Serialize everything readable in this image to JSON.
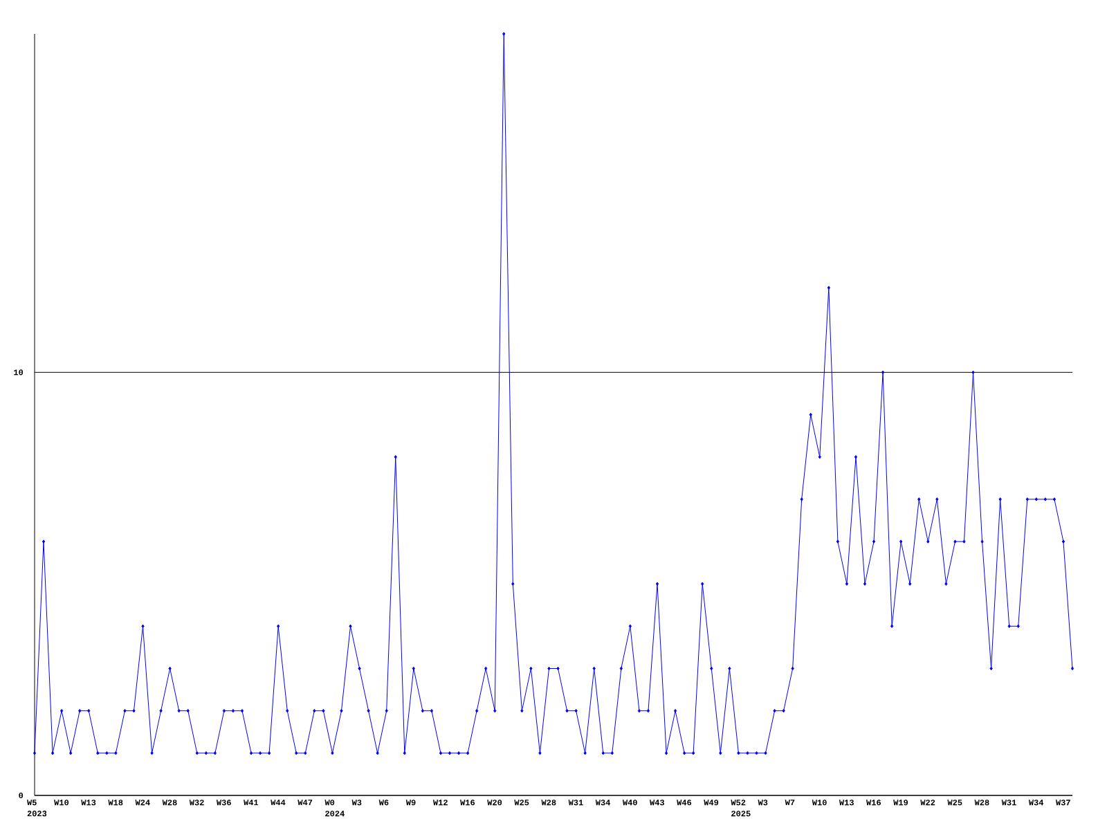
{
  "chart_data": {
    "type": "line",
    "categories": [
      "W5 2023",
      null,
      null,
      "W10",
      null,
      null,
      "W13",
      null,
      null,
      "W18",
      null,
      null,
      "W24",
      null,
      null,
      "W28",
      null,
      null,
      "W32",
      null,
      null,
      "W36",
      null,
      null,
      "W41",
      null,
      null,
      "W44",
      null,
      null,
      "W47",
      null,
      null,
      "W0 2024",
      null,
      null,
      "W3",
      null,
      null,
      "W6",
      null,
      null,
      "W9",
      null,
      null,
      "W12",
      null,
      null,
      "W16",
      null,
      null,
      "W20",
      null,
      null,
      "W25",
      null,
      null,
      "W28",
      null,
      null,
      "W31",
      null,
      null,
      "W34",
      null,
      null,
      "W40",
      null,
      null,
      "W43",
      null,
      null,
      "W46",
      null,
      null,
      "W49",
      null,
      null,
      "W52 2025",
      null,
      null,
      "W3",
      null,
      null,
      "W7",
      null,
      null,
      "W10",
      null,
      null,
      "W13",
      null,
      null,
      "W16",
      null,
      null,
      "W19",
      null,
      null,
      "W22",
      null,
      null,
      "W25",
      null,
      null,
      "W28",
      null,
      null,
      "W31",
      null,
      null,
      "W34",
      null,
      null,
      "W37",
      null
    ],
    "series": [
      {
        "color": "#0000ff",
        "values": [
          1,
          6,
          1,
          2,
          1,
          2,
          2,
          1,
          1,
          1,
          2,
          2,
          4,
          1,
          2,
          3,
          2,
          2,
          1,
          1,
          1,
          2,
          2,
          2,
          1,
          1,
          1,
          4,
          2,
          1,
          1,
          2,
          2,
          1,
          2,
          4,
          3,
          2,
          1,
          2,
          8,
          1,
          3,
          2,
          2,
          1,
          1,
          1,
          1,
          2,
          3,
          2,
          18,
          5,
          2,
          3,
          1,
          3,
          3,
          2,
          2,
          1,
          3,
          1,
          1,
          3,
          4,
          2,
          2,
          5,
          1,
          2,
          1,
          1,
          5,
          3,
          1,
          3,
          1,
          1,
          1,
          1,
          2,
          2,
          3,
          7,
          9,
          8,
          12,
          6,
          5,
          8,
          5,
          6,
          10,
          4,
          6,
          5,
          7,
          6,
          7,
          5,
          6,
          6,
          10,
          6,
          3,
          7,
          4,
          4,
          7,
          7,
          7,
          7,
          6,
          3
        ]
      }
    ],
    "ylim": [
      0,
      18
    ],
    "yticks": [
      0,
      10
    ],
    "grid": "y",
    "marker": "diamond",
    "line_style": "solid"
  }
}
